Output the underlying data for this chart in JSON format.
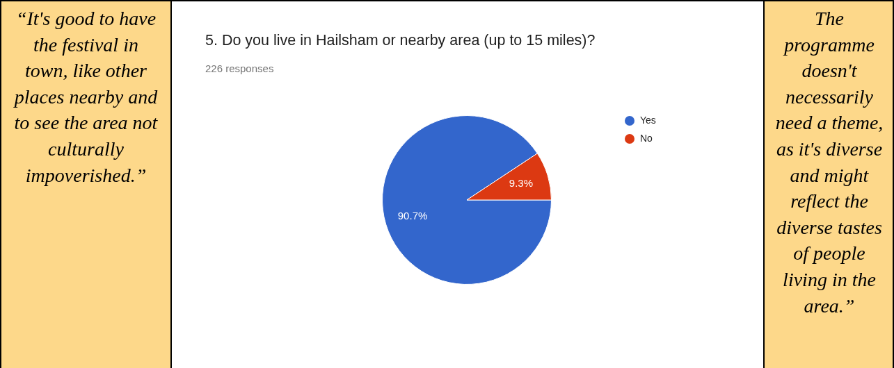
{
  "chart_data": {
    "type": "pie",
    "title": "5. Do you live in Hailsham or nearby area (up to 15 miles)?",
    "subtitle": "226 responses",
    "categories": [
      "Yes",
      "No"
    ],
    "values": [
      90.7,
      9.3
    ],
    "colors": [
      "#3366cc",
      "#dc3912"
    ],
    "value_labels": [
      "90.7%",
      "9.3%"
    ],
    "legend": "right",
    "annotations": [
      "“It's good to have the festival in town, like other places nearby and to see the area not culturally impoverished.”",
      "The programme doesn't necessarily need a theme, as it's diverse and might reflect the diverse tastes of people living in the area.”"
    ]
  }
}
